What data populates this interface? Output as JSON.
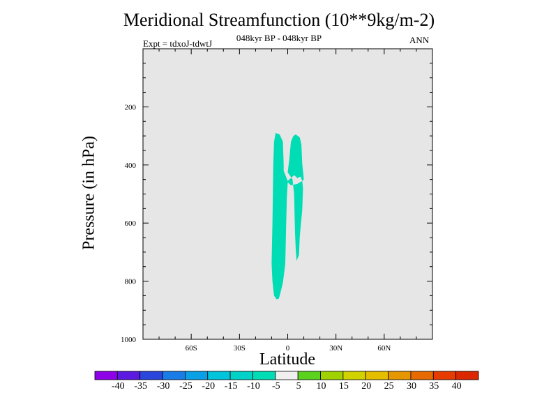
{
  "chart_data": {
    "type": "contour",
    "title": "Meridional Streamfunction (10**9kg/m-2)",
    "subtitle": "048kyr BP - 048kyr BP",
    "left_label": "Expt = tdxoJ-tdwtJ",
    "right_label": "ANN",
    "xlabel": "Latitude",
    "ylabel": "Pressure (in hPa)",
    "xlim": [
      -90,
      90
    ],
    "ylim": [
      1000,
      0
    ],
    "y_scale": "linear (reversed)",
    "x_ticks": [
      {
        "value": -60,
        "label": "60S"
      },
      {
        "value": -30,
        "label": "30S"
      },
      {
        "value": 0,
        "label": "0"
      },
      {
        "value": 30,
        "label": "30N"
      },
      {
        "value": 60,
        "label": "60N"
      }
    ],
    "y_ticks": [
      {
        "value": 200,
        "label": "200"
      },
      {
        "value": 400,
        "label": "400"
      },
      {
        "value": 600,
        "label": "600"
      },
      {
        "value": 800,
        "label": "800"
      },
      {
        "value": 1000,
        "label": "1000"
      }
    ],
    "background_color": "#e6e6e6",
    "filled_regions": [
      {
        "level": "-10 to -5",
        "color": "#00dcb4",
        "points": [
          [
            -7.5,
            290
          ],
          [
            -5,
            295
          ],
          [
            -3,
            320
          ],
          [
            -2.5,
            400
          ],
          [
            -2.5,
            420
          ],
          [
            0,
            455
          ],
          [
            4,
            435
          ],
          [
            6,
            445
          ],
          [
            8,
            440
          ],
          [
            9,
            455
          ],
          [
            10,
            450
          ],
          [
            9,
            395
          ],
          [
            8.5,
            330
          ],
          [
            7.5,
            305
          ],
          [
            5,
            295
          ],
          [
            3.5,
            300
          ],
          [
            2,
            320
          ],
          [
            1,
            380
          ],
          [
            0,
            425
          ],
          [
            3,
            450
          ],
          [
            4,
            500
          ],
          [
            4.5,
            630
          ],
          [
            5,
            690
          ],
          [
            5.5,
            730
          ],
          [
            7,
            710
          ],
          [
            7.5,
            645
          ],
          [
            9,
            555
          ],
          [
            9.5,
            480
          ],
          [
            9,
            455
          ],
          [
            6,
            465
          ],
          [
            2,
            470
          ],
          [
            0,
            460
          ],
          [
            -0.5,
            510
          ],
          [
            -1,
            610
          ],
          [
            -1.5,
            740
          ],
          [
            -3,
            805
          ],
          [
            -4.5,
            840
          ],
          [
            -5.5,
            860
          ],
          [
            -7,
            862
          ],
          [
            -8.5,
            850
          ],
          [
            -9.5,
            800
          ],
          [
            -10,
            740
          ],
          [
            -9.5,
            600
          ],
          [
            -9,
            400
          ],
          [
            -8.5,
            320
          ]
        ]
      }
    ],
    "colorbar": {
      "labels": [
        "-40",
        "-35",
        "-30",
        "-25",
        "-20",
        "-15",
        "-10",
        "-5",
        "5",
        "10",
        "15",
        "20",
        "25",
        "30",
        "35",
        "40"
      ],
      "colors": [
        "#8e00e8",
        "#5c1ae0",
        "#2a46dc",
        "#1a7ce6",
        "#0aa0e6",
        "#00c4dc",
        "#00d2c8",
        "#00dcb4",
        "#f0f0f0",
        "#5ad21e",
        "#a0d200",
        "#d2d200",
        "#e6be00",
        "#e69600",
        "#e66a00",
        "#e63c00",
        "#dc2800"
      ]
    }
  }
}
